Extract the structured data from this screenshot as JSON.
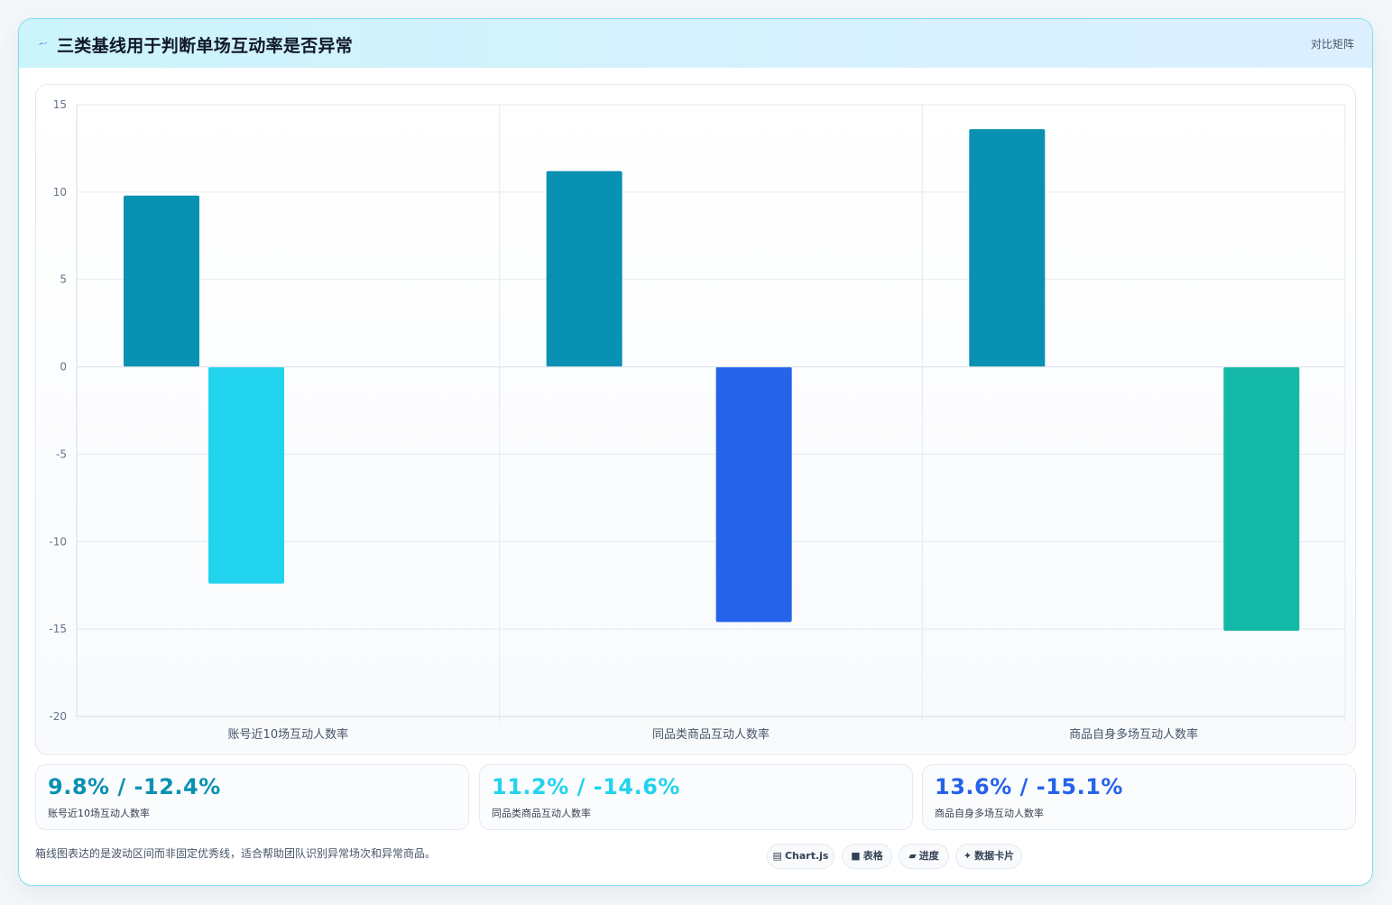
{
  "header": {
    "icon": "zap-icon",
    "title": "三类基线用于判断单场互动率是否异常",
    "right_label": "对比矩阵"
  },
  "chart_data": {
    "type": "bar",
    "categories": [
      "账号近10场互动人数率",
      "同品类商品互动人数率",
      "商品自身多场互动人数率"
    ],
    "series": [
      {
        "values": [
          9.8,
          11.2,
          13.6
        ]
      },
      {
        "values": [
          -12.4,
          -14.6,
          -15.1
        ]
      }
    ],
    "colors": {
      "positive": [
        "#0891b2",
        "#0891b2",
        "#0891b2"
      ],
      "negative": [
        "#22d3ee",
        "#2563eb",
        "#14b8a6"
      ]
    },
    "ylim": [
      -20,
      15
    ],
    "yticks": [
      15,
      10,
      5,
      0,
      -5,
      -10,
      -15,
      -20
    ],
    "grid": true,
    "legend": "none",
    "title": "",
    "xlabel": "",
    "ylabel": ""
  },
  "cards": [
    {
      "value": "9.8% / -12.4%",
      "label": "账号近10场互动人数率",
      "color": "#0891b2"
    },
    {
      "value": "11.2% / -14.6%",
      "label": "同品类商品互动人数率",
      "color": "#22d3ee"
    },
    {
      "value": "13.6% / -15.1%",
      "label": "商品自身多场互动人数率",
      "color": "#2563eb"
    }
  ],
  "footnote": "箱线图表达的是波动区间而非固定优秀线，适合帮助团队识别异常场次和异常商品。",
  "chips": [
    {
      "icon": "chart-icon",
      "label": "Chart.js"
    },
    {
      "icon": "table-icon",
      "label": "表格"
    },
    {
      "icon": "progress-icon",
      "label": "进度"
    },
    {
      "icon": "sparkle-icon",
      "label": "数据卡片"
    }
  ]
}
